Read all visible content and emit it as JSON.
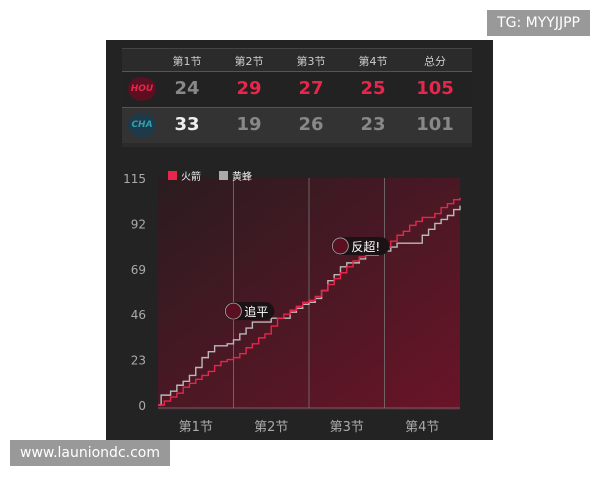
{
  "watermarks": {
    "top": "TG: MYYJJPP",
    "bottom": "www.launiondc.com"
  },
  "scoreboard": {
    "headers": [
      "第1节",
      "第2节",
      "第3节",
      "第4节",
      "总分"
    ],
    "teams": [
      {
        "logo": "HOU",
        "scores": [
          "24",
          "29",
          "27",
          "25",
          "105"
        ],
        "color": "#e8254a"
      },
      {
        "logo": "CHA",
        "scores": [
          "33",
          "19",
          "26",
          "23",
          "101"
        ],
        "color": "#2fa0b0"
      }
    ]
  },
  "chart_data": {
    "type": "line",
    "step": true,
    "x_categories": [
      "第1节",
      "第2节",
      "第3节",
      "第4节"
    ],
    "xlim": [
      0,
      48
    ],
    "ylim": [
      0,
      115
    ],
    "yticks": [
      0,
      23,
      46,
      69,
      92,
      115
    ],
    "grid": "vertical quarter dividers",
    "legend": "top-left",
    "series": [
      {
        "name": "火箭",
        "color": "#e8254a",
        "points": [
          [
            0,
            0
          ],
          [
            1,
            2
          ],
          [
            2,
            4
          ],
          [
            3,
            6
          ],
          [
            4,
            9
          ],
          [
            5,
            11
          ],
          [
            6,
            13
          ],
          [
            7,
            15
          ],
          [
            8,
            17
          ],
          [
            9,
            20
          ],
          [
            10,
            22
          ],
          [
            11,
            23
          ],
          [
            12,
            24
          ],
          [
            13,
            26
          ],
          [
            14,
            29
          ],
          [
            15,
            31
          ],
          [
            16,
            34
          ],
          [
            17,
            36
          ],
          [
            18,
            40
          ],
          [
            19,
            44
          ],
          [
            20,
            46
          ],
          [
            21,
            48
          ],
          [
            22,
            50
          ],
          [
            23,
            52
          ],
          [
            24,
            53
          ],
          [
            25,
            55
          ],
          [
            26,
            58
          ],
          [
            27,
            61
          ],
          [
            28,
            64
          ],
          [
            29,
            67
          ],
          [
            30,
            70
          ],
          [
            31,
            73
          ],
          [
            32,
            75
          ],
          [
            33,
            77
          ],
          [
            34,
            78
          ],
          [
            35,
            79
          ],
          [
            36,
            80
          ],
          [
            37,
            83
          ],
          [
            38,
            86
          ],
          [
            39,
            88
          ],
          [
            40,
            91
          ],
          [
            41,
            93
          ],
          [
            42,
            95
          ],
          [
            44,
            97
          ],
          [
            45,
            100
          ],
          [
            46,
            102
          ],
          [
            47,
            104
          ],
          [
            48,
            105
          ]
        ]
      },
      {
        "name": "黄蜂",
        "color": "#b9b9b9",
        "points": [
          [
            0,
            0
          ],
          [
            0.5,
            5
          ],
          [
            2,
            7
          ],
          [
            3,
            10
          ],
          [
            4,
            12
          ],
          [
            5,
            15
          ],
          [
            6,
            19
          ],
          [
            7,
            24
          ],
          [
            8,
            27
          ],
          [
            9,
            30
          ],
          [
            11,
            31
          ],
          [
            12,
            33
          ],
          [
            13,
            36
          ],
          [
            14,
            39
          ],
          [
            15,
            42
          ],
          [
            18,
            44
          ],
          [
            21,
            47
          ],
          [
            22,
            49
          ],
          [
            23,
            51
          ],
          [
            24,
            52
          ],
          [
            25,
            54
          ],
          [
            26,
            58
          ],
          [
            27,
            63
          ],
          [
            28,
            66
          ],
          [
            29,
            70
          ],
          [
            30,
            72
          ],
          [
            32,
            74
          ],
          [
            33,
            76
          ],
          [
            35,
            78
          ],
          [
            37,
            80
          ],
          [
            38,
            82
          ],
          [
            41,
            82
          ],
          [
            42,
            86
          ],
          [
            43,
            89
          ],
          [
            44,
            92
          ],
          [
            45,
            94
          ],
          [
            46,
            96
          ],
          [
            47,
            99
          ],
          [
            48,
            101
          ]
        ]
      }
    ],
    "annotations": [
      {
        "text": "追平",
        "x": 15,
        "y": 42
      },
      {
        "text": "反超!",
        "x": 32,
        "y": 75
      }
    ]
  }
}
